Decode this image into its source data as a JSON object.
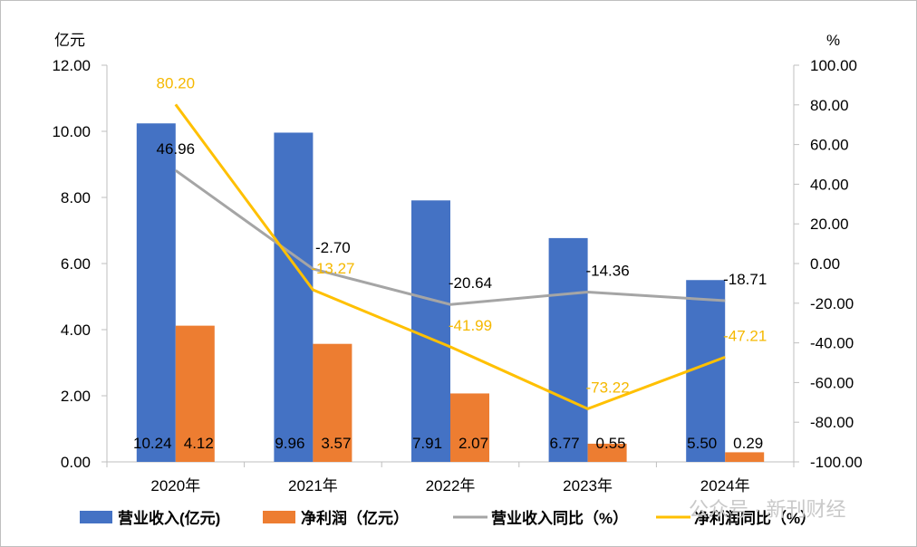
{
  "chart_data": {
    "type": "bar",
    "categories": [
      "2020年",
      "2021年",
      "2022年",
      "2023年",
      "2024年"
    ],
    "series": [
      {
        "name": "营业收入(亿元)",
        "type": "bar",
        "axis": "left",
        "color": "#4472c4",
        "values": [
          10.24,
          9.96,
          7.91,
          6.77,
          5.5
        ],
        "labels": [
          "10.24",
          "9.96",
          "7.91",
          "6.77",
          "5.50"
        ]
      },
      {
        "name": "净利润（亿元）",
        "type": "bar",
        "axis": "left",
        "color": "#ed7d31",
        "values": [
          4.12,
          3.57,
          2.07,
          0.55,
          0.29
        ],
        "labels": [
          "4.12",
          "3.57",
          "2.07",
          "0.55",
          "0.29"
        ]
      },
      {
        "name": "营业收入同比（%）",
        "type": "line",
        "axis": "right",
        "color": "#a5a5a5",
        "values": [
          46.96,
          -2.7,
          -20.64,
          -14.36,
          -18.71
        ],
        "labels": [
          "46.96",
          "-2.70",
          "-20.64",
          "-14.36",
          "-18.71"
        ]
      },
      {
        "name": "净利润同比（%）",
        "type": "line",
        "axis": "right",
        "color": "#ffc000",
        "values": [
          80.2,
          -13.27,
          -41.99,
          -73.22,
          -47.21
        ],
        "labels": [
          "80.20",
          "-13.27",
          "-41.99",
          "-73.22",
          "-47.21"
        ]
      }
    ],
    "y_left": {
      "label": "亿元",
      "ylim": [
        0,
        12
      ],
      "ticks": [
        "0.00",
        "2.00",
        "4.00",
        "6.00",
        "8.00",
        "10.00",
        "12.00"
      ]
    },
    "y_right": {
      "label": "%",
      "ylim": [
        -100,
        100
      ],
      "ticks": [
        "-100.00",
        "-80.00",
        "-60.00",
        "-40.00",
        "-20.00",
        "0.00",
        "20.00",
        "40.00",
        "60.00",
        "80.00",
        "100.00"
      ]
    },
    "grid": false,
    "legend": "bottom"
  },
  "watermark": "公众号 · 新刊财经"
}
